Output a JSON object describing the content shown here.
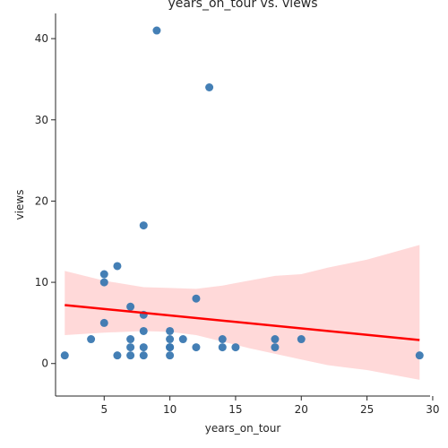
{
  "chart_data": {
    "type": "scatter",
    "title": "years_on_tour vs. views",
    "xlabel": "years_on_tour",
    "ylabel": "views",
    "xlim": [
      1.3,
      29.8
    ],
    "ylim": [
      -4.0,
      43.1
    ],
    "xticks": [
      5,
      10,
      15,
      20,
      25,
      30
    ],
    "yticks": [
      0,
      10,
      20,
      30,
      40
    ],
    "grid": false,
    "point_color": "#3a78b1",
    "regression_color": "#ff0000",
    "band_color": "#ffcccc",
    "points": [
      [
        2,
        1
      ],
      [
        4,
        3
      ],
      [
        5,
        11
      ],
      [
        5,
        10
      ],
      [
        5,
        5
      ],
      [
        6,
        12
      ],
      [
        6,
        1
      ],
      [
        7,
        7
      ],
      [
        7,
        3
      ],
      [
        7,
        2
      ],
      [
        7,
        1
      ],
      [
        8,
        17
      ],
      [
        8,
        6
      ],
      [
        8,
        4
      ],
      [
        8,
        2
      ],
      [
        8,
        1
      ],
      [
        9,
        41
      ],
      [
        10,
        4
      ],
      [
        10,
        3
      ],
      [
        10,
        2
      ],
      [
        10,
        2
      ],
      [
        10,
        1
      ],
      [
        11,
        3
      ],
      [
        12,
        8
      ],
      [
        12,
        2
      ],
      [
        13,
        34
      ],
      [
        14,
        3
      ],
      [
        14,
        2
      ],
      [
        15,
        2
      ],
      [
        18,
        3
      ],
      [
        18,
        2
      ],
      [
        20,
        3
      ],
      [
        29,
        1
      ]
    ],
    "regression": {
      "x": [
        2,
        29
      ],
      "y": [
        7.2,
        2.9
      ]
    },
    "confidence_band": {
      "x": [
        2,
        5,
        8,
        10,
        12,
        14,
        16,
        18,
        20,
        22,
        25,
        29
      ],
      "upper": [
        11.4,
        10.2,
        9.4,
        9.3,
        9.2,
        9.6,
        10.2,
        10.8,
        11.0,
        11.8,
        12.8,
        14.6
      ],
      "lower": [
        3.5,
        3.8,
        4.0,
        3.9,
        3.5,
        2.7,
        1.9,
        1.2,
        0.5,
        -0.2,
        -0.8,
        -2.0
      ]
    }
  }
}
